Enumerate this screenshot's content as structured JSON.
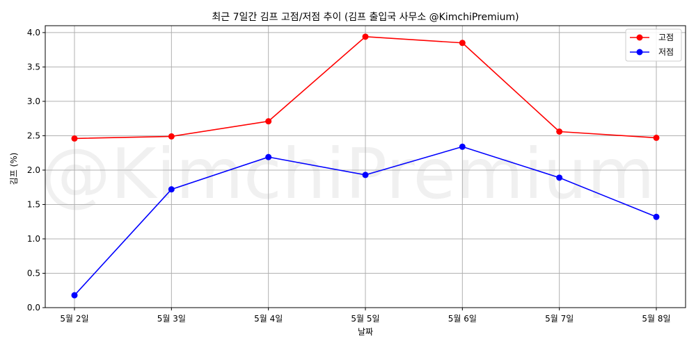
{
  "chart_data": {
    "type": "line",
    "title": "최근 7일간 김프 고점/저점 추이 (김프 출입국 사무소 @KimchiPremium)",
    "xlabel": "날짜",
    "ylabel": "김프 (%)",
    "categories": [
      "5월 2일",
      "5월 3일",
      "5월 4일",
      "5월 5일",
      "5월 6일",
      "5월 7일",
      "5월 8일"
    ],
    "series": [
      {
        "name": "고점",
        "color": "#ff0000",
        "marker": "circle",
        "values": [
          2.46,
          2.49,
          2.71,
          3.94,
          3.85,
          2.56,
          2.47
        ]
      },
      {
        "name": "저점",
        "color": "#0000ff",
        "marker": "circle",
        "values": [
          0.18,
          1.72,
          2.19,
          1.93,
          2.34,
          1.89,
          1.32
        ]
      }
    ],
    "ylim": [
      0,
      4.1
    ],
    "yticks": [
      0.0,
      0.5,
      1.0,
      1.5,
      2.0,
      2.5,
      3.0,
      3.5,
      4.0
    ],
    "ytick_labels": [
      "0.0",
      "0.5",
      "1.0",
      "1.5",
      "2.0",
      "2.5",
      "3.0",
      "3.5",
      "4.0"
    ],
    "grid": true,
    "legend_position": "top-right",
    "watermark": "@KimchiPremium"
  }
}
